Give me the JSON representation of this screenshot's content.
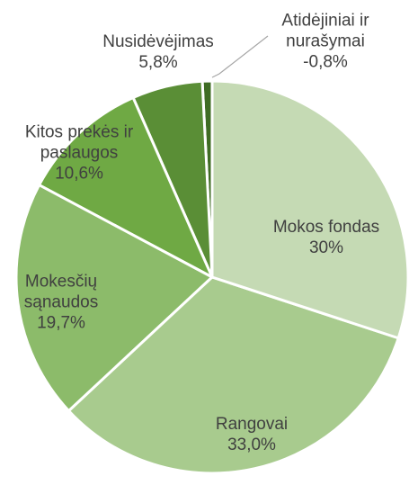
{
  "chart_data": {
    "type": "pie",
    "categories": [
      "Mokos fondas",
      "Rangovai",
      "Mokesčių sąnaudos",
      "Kitos prekės ir paslaugos",
      "Nusidėvėjimas",
      "Atidėjiniai ir nurašymai"
    ],
    "values": [
      30,
      33.0,
      19.7,
      10.6,
      5.8,
      -0.8
    ],
    "value_labels": [
      "30%",
      "33,0%",
      "19,7%",
      "10,6%",
      "5,8%",
      "-0,8%"
    ],
    "colors": [
      "#c5dab4",
      "#a8cb8e",
      "#8cbb6a",
      "#6fa944",
      "#5a8e36",
      "#3f6c24"
    ]
  }
}
